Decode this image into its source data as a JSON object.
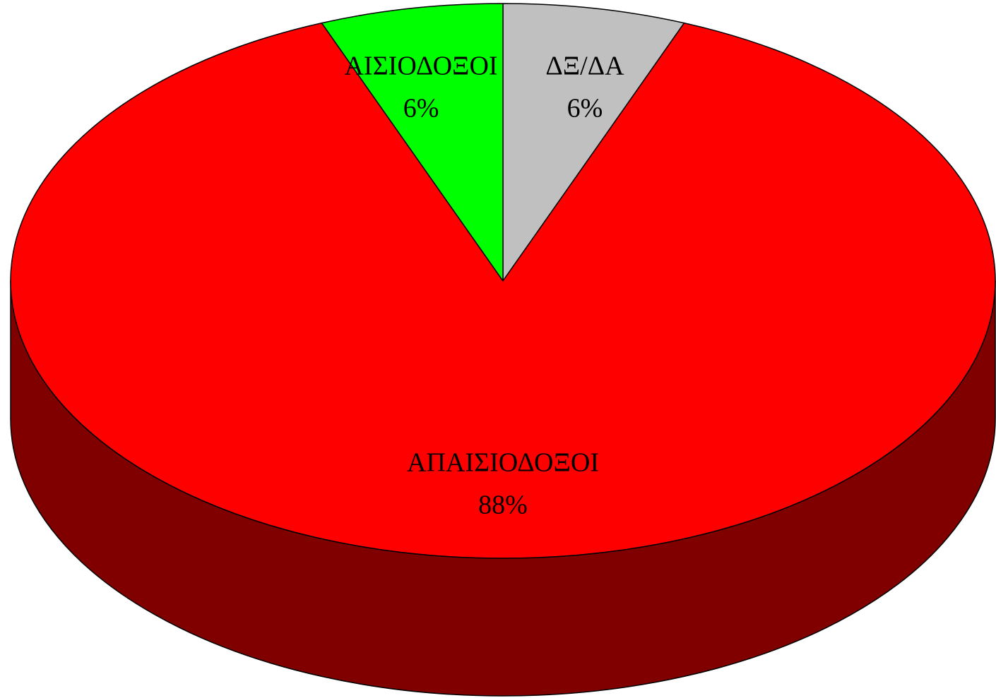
{
  "chart_data": {
    "type": "pie",
    "categories": [
      "ΔΞ/ΔΑ",
      "ΑΠΑΙΣΙΟΔΟΞΟΙ",
      "ΑΙΣΙΟΔΟΞΟΙ"
    ],
    "values": [
      6,
      88,
      6
    ],
    "value_labels": [
      "6%",
      "88%",
      "6%"
    ],
    "colors": [
      "#c0c0c0",
      "#ff0000",
      "#00ff00"
    ],
    "three_d": true
  }
}
